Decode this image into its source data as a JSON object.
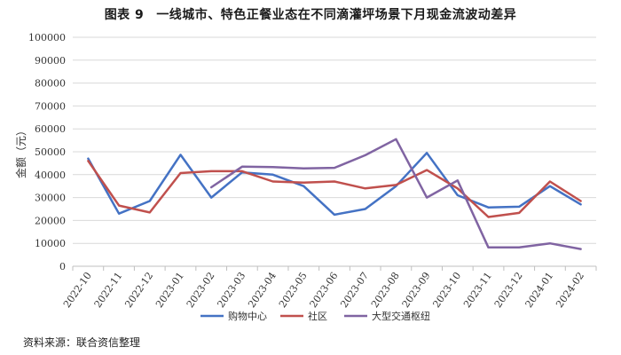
{
  "figure": {
    "label": "图表 9",
    "title": "一线城市、特色正餐业态在不同滴灌坪场景下月现金流波动差异",
    "source": "资料来源：联合资信整理"
  },
  "chart_data": {
    "type": "line",
    "ylabel": "金额（元）",
    "ylim": [
      0,
      100000
    ],
    "yticks": [
      0,
      10000,
      20000,
      30000,
      40000,
      50000,
      60000,
      70000,
      80000,
      90000,
      100000
    ],
    "grid": true,
    "legend_position": "bottom",
    "categories": [
      "2022-10",
      "2022-11",
      "2022-12",
      "2023-01",
      "2023-02",
      "2023-03",
      "2023-04",
      "2023-05",
      "2023-06",
      "2023-07",
      "2023-08",
      "2023-09",
      "2023-10",
      "2023-11",
      "2023-12",
      "2024-01",
      "2024-02"
    ],
    "series": [
      {
        "name": "购物中心",
        "color": "#4472C4",
        "values": [
          47000,
          23000,
          28500,
          48700,
          30000,
          41000,
          40000,
          35000,
          22500,
          25000,
          35000,
          49500,
          31000,
          25700,
          26000,
          35000,
          27000
        ]
      },
      {
        "name": "社区",
        "color": "#C0504D",
        "values": [
          46000,
          26500,
          23500,
          40700,
          41500,
          41500,
          37000,
          36500,
          37000,
          34000,
          35500,
          42000,
          34000,
          21500,
          23300,
          37000,
          28500
        ]
      },
      {
        "name": "大型交通枢纽",
        "color": "#8064A2",
        "values": [
          null,
          null,
          null,
          null,
          34500,
          43500,
          43300,
          42700,
          43000,
          48500,
          55500,
          30000,
          37500,
          8200,
          8200,
          10000,
          7500
        ]
      }
    ]
  }
}
